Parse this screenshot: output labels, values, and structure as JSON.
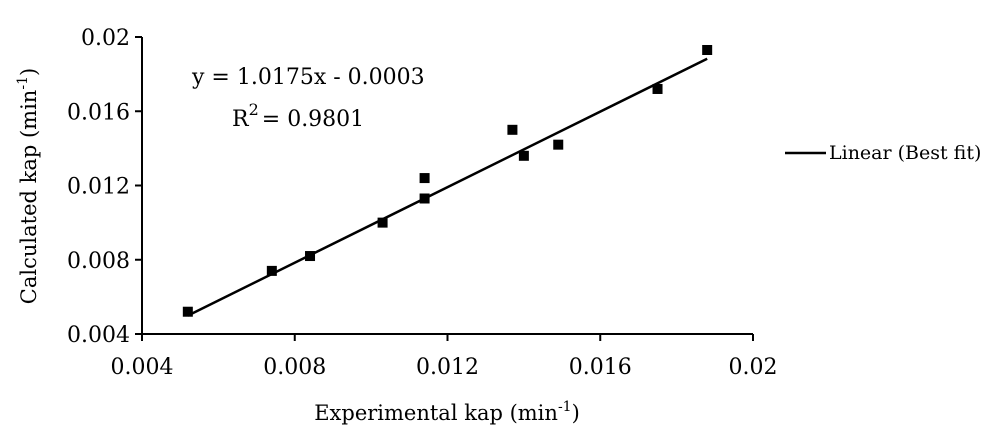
{
  "chart_data": {
    "type": "scatter",
    "xlabel": "Experimental kap (min",
    "xlabel_sup": "-1",
    "xlabel_end": ")",
    "ylabel": "Calculated kap (min",
    "ylabel_sup": "-1",
    "ylabel_end": ")",
    "xlim": [
      0.004,
      0.02
    ],
    "ylim": [
      0.004,
      0.02
    ],
    "xticks": [
      "0.004",
      "0.008",
      "0.012",
      "0.016",
      "0.02"
    ],
    "yticks": [
      "0.004",
      "0.008",
      "0.012",
      "0.016",
      "0.02"
    ],
    "grid": false,
    "legend_position": "right",
    "series": [
      {
        "type": "scatter",
        "marker": "square",
        "color": "#000000",
        "x": [
          0.0052,
          0.0074,
          0.0084,
          0.0103,
          0.0114,
          0.0114,
          0.0137,
          0.014,
          0.0149,
          0.0175,
          0.0188
        ],
        "y": [
          0.0052,
          0.0074,
          0.0082,
          0.01,
          0.0113,
          0.0124,
          0.015,
          0.0136,
          0.0142,
          0.0172,
          0.0193
        ]
      },
      {
        "type": "line",
        "name": "Linear (Best fit)",
        "color": "#000000",
        "slope": 1.0175,
        "intercept": -0.0003,
        "x_range": [
          0.0052,
          0.0188
        ]
      }
    ],
    "annotations": {
      "equation": "y = 1.0175x - 0.0003",
      "r2_prefix": "R",
      "r2_sup": "2",
      "r2_value": "= 0.9801"
    }
  }
}
